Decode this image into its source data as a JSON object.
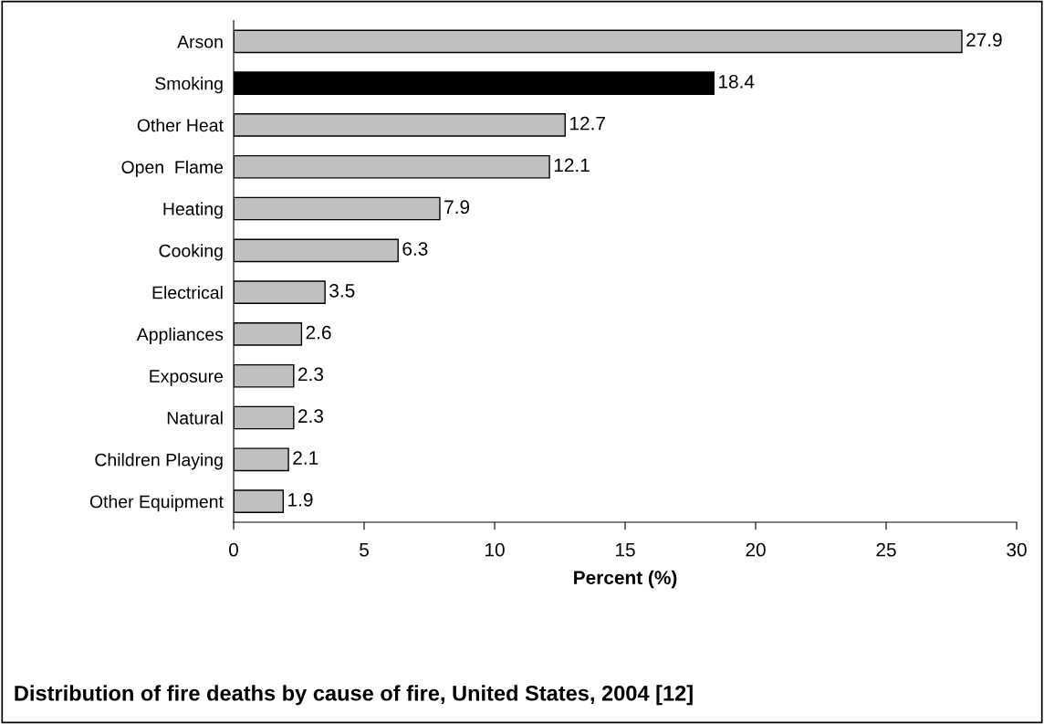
{
  "chart_data": {
    "type": "bar",
    "orientation": "horizontal",
    "title": "Distribution of fire deaths by cause of fire, United States, 2004 [12]",
    "xlabel": "Percent (%)",
    "categories": [
      "Arson",
      "Smoking",
      "Other Heat",
      "Open  Flame",
      "Heating",
      "Cooking",
      "Electrical",
      "Appliances",
      "Exposure",
      "Natural",
      "Children Playing",
      "Other Equipment"
    ],
    "values": [
      27.9,
      18.4,
      12.7,
      12.1,
      7.9,
      6.3,
      3.5,
      2.6,
      2.3,
      2.3,
      2.1,
      1.9
    ],
    "colors": [
      "#c0c0c0",
      "#000000",
      "#c0c0c0",
      "#c0c0c0",
      "#c0c0c0",
      "#c0c0c0",
      "#c0c0c0",
      "#c0c0c0",
      "#c0c0c0",
      "#c0c0c0",
      "#c0c0c0",
      "#c0c0c0"
    ],
    "xlim": [
      0,
      30
    ],
    "xticks": [
      0,
      5,
      10,
      15,
      20,
      25,
      30
    ],
    "data_labels": true,
    "grid": false,
    "legend": false
  }
}
